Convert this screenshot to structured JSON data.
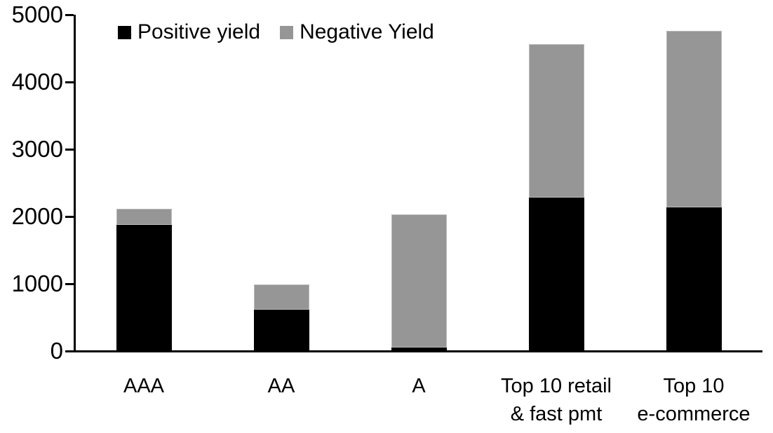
{
  "chart_data": {
    "type": "bar",
    "stacked": true,
    "title": "",
    "categories": [
      "AAA",
      "AA",
      "A",
      "Top 10 retail & fast pmt",
      "Top 10 e-commerce"
    ],
    "category_label_lines": [
      [
        "AAA"
      ],
      [
        "AA"
      ],
      [
        "A"
      ],
      [
        "Top 10 retail",
        "& fast pmt"
      ],
      [
        "Top 10",
        "e-commerce"
      ]
    ],
    "series": [
      {
        "name": "Positive yield",
        "color": "#000000",
        "values": [
          1880,
          610,
          50,
          2280,
          2140
        ]
      },
      {
        "name": "Negative Yield",
        "color": "#969696",
        "values": [
          230,
          380,
          1980,
          2280,
          2620
        ]
      }
    ],
    "totals": [
      2110,
      990,
      2030,
      4560,
      4760
    ],
    "ylim": [
      0,
      5000
    ],
    "yticks": [
      0,
      1000,
      2000,
      3000,
      4000,
      5000
    ],
    "grid": false,
    "legend_position": "top",
    "axis_color": "#000000",
    "background_color": "#ffffff"
  }
}
